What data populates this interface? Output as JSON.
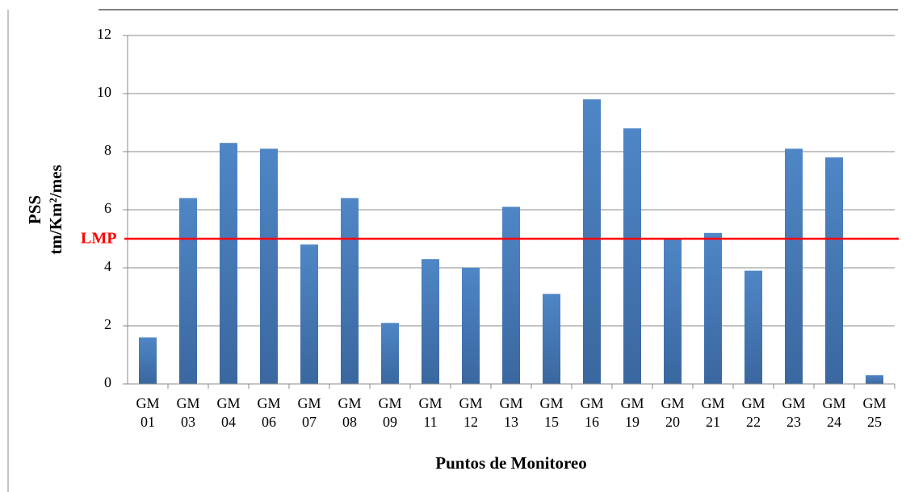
{
  "chart_data": {
    "type": "bar",
    "categories": [
      "GM 01",
      "GM 03",
      "GM 04",
      "GM 06",
      "GM 07",
      "GM 08",
      "GM 09",
      "GM 11",
      "GM 12",
      "GM 13",
      "GM 15",
      "GM 16",
      "GM 19",
      "GM 20",
      "GM 21",
      "GM 22",
      "GM 23",
      "GM 24",
      "GM 25"
    ],
    "values": [
      1.6,
      6.4,
      8.3,
      8.1,
      4.8,
      6.4,
      2.1,
      4.3,
      4.0,
      6.1,
      3.1,
      9.8,
      8.8,
      5.0,
      5.2,
      3.9,
      8.1,
      7.8,
      0.3
    ],
    "color": "#4a7ebb",
    "ylim": [
      0,
      12
    ],
    "yticks": [
      0,
      2,
      4,
      6,
      8,
      10,
      12
    ],
    "grid": true,
    "ylabel": [
      "PSS",
      "tm/Km²/mes"
    ],
    "xlabel": "Puntos de Monitoreo",
    "reference_line": {
      "value": 5,
      "label": "LMP",
      "color": "#ff0000"
    }
  }
}
